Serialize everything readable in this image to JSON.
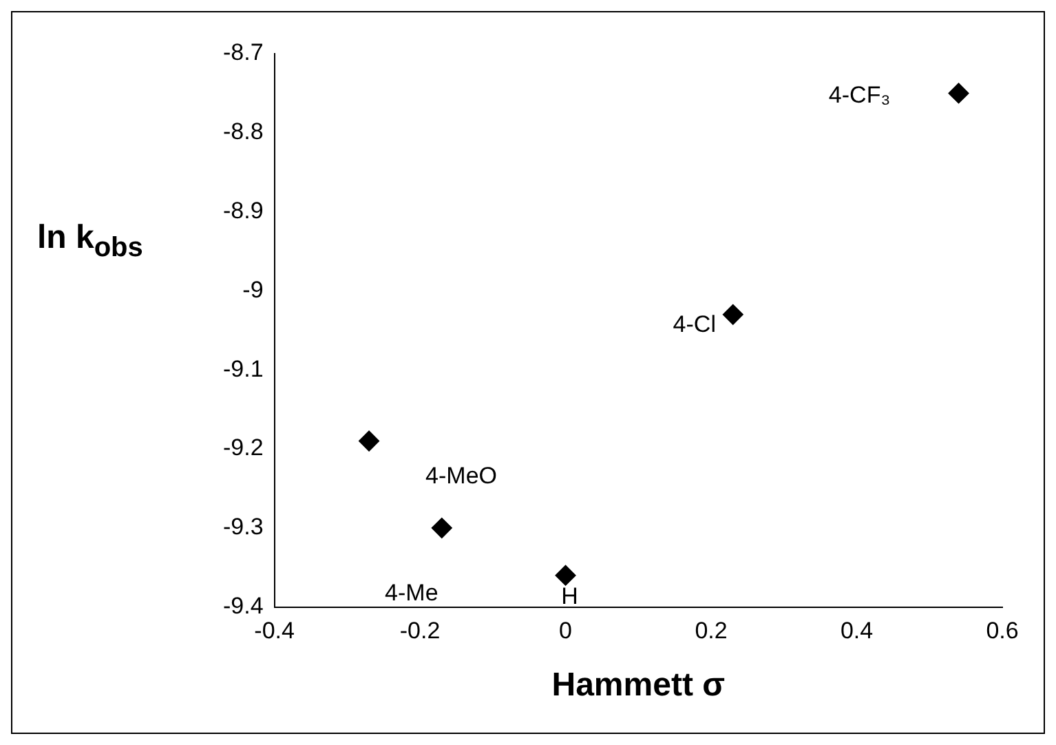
{
  "chart_data": {
    "type": "scatter",
    "xlabel": "Hammett σ",
    "ylabel": "ln k$_{obs}$",
    "x": [
      -0.27,
      -0.17,
      0,
      0.23,
      0.54
    ],
    "series": [
      {
        "color": "#000000",
        "values": [
          -9.19,
          -9.3,
          -9.36,
          -9.03,
          -8.75
        ]
      }
    ],
    "xlim": [
      -0.4,
      0.6
    ],
    "xticks": [
      -0.4,
      -0.2,
      0,
      0.2,
      0.4,
      0.6
    ],
    "ylim": [
      -9.4,
      -8.7
    ],
    "yticks": [
      -9.4,
      -9.3,
      -9.2,
      -9.1,
      -9,
      -8.9,
      -8.8,
      -8.7
    ],
    "marker": "diamond",
    "grid": false,
    "legend": false,
    "annotations": [
      {
        "text": "4-MeO",
        "x": -0.27,
        "y": -9.19
      },
      {
        "text": "4-Me",
        "x": -0.17,
        "y": -9.3
      },
      {
        "text": "H",
        "x": 0,
        "y": -9.36
      },
      {
        "text": "4-Cl",
        "x": 0.23,
        "y": -9.03
      },
      {
        "text": "4-CF₃",
        "x": 0.54,
        "y": -8.75
      }
    ]
  }
}
